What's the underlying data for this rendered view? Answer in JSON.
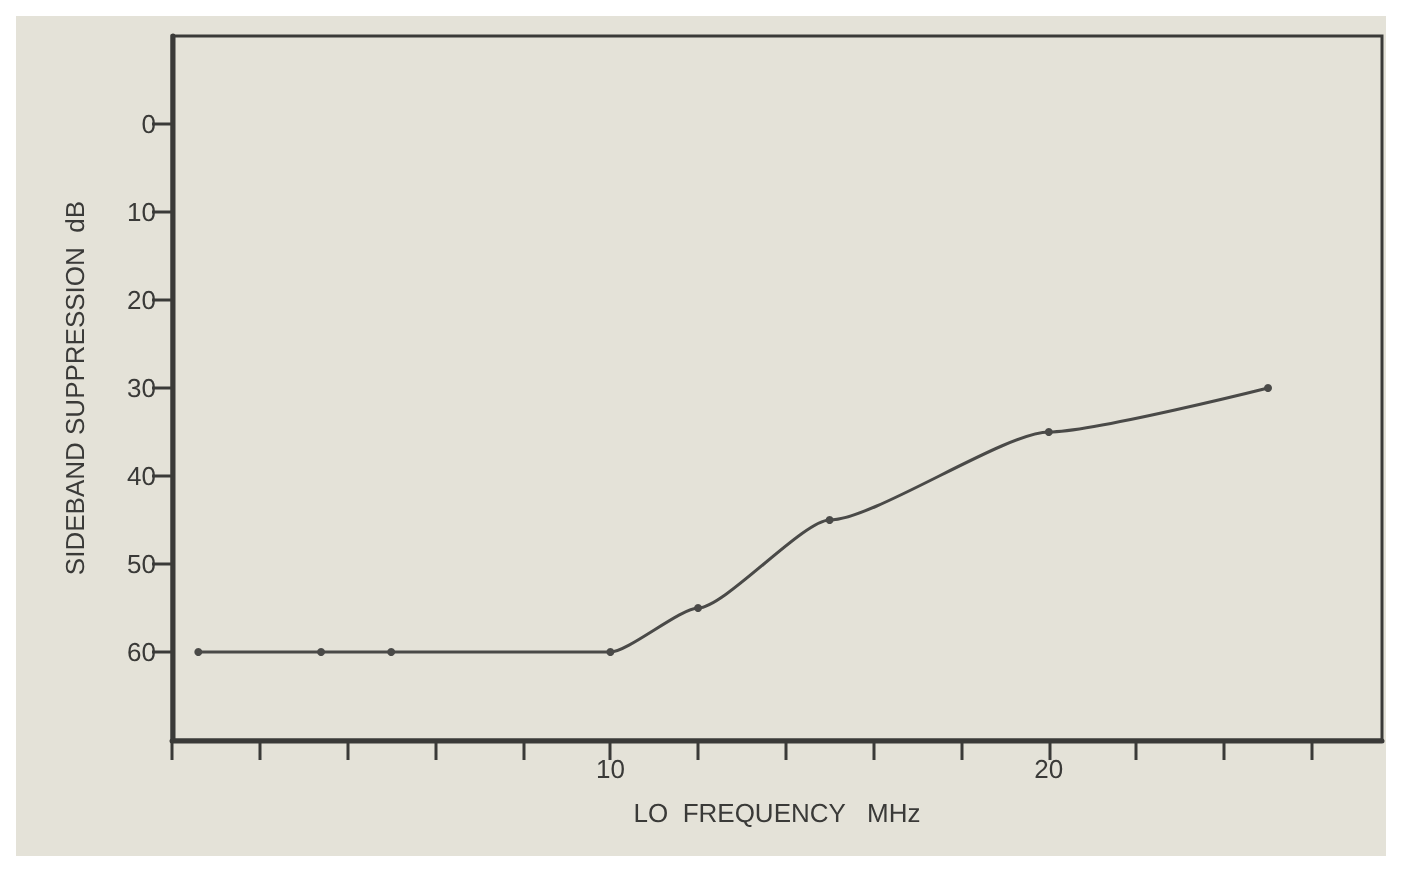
{
  "chart_data": {
    "type": "line",
    "xlabel": "LO  FREQUENCY   MHz",
    "ylabel": "SIDEBAND SUPPRESSION  dB",
    "x": [
      0.6,
      3.4,
      5,
      10,
      12,
      15,
      20,
      25
    ],
    "series": [
      {
        "color": "#4a4a48",
        "values": [
          60,
          60,
          60,
          60,
          55,
          45,
          35,
          30
        ]
      }
    ],
    "xlim": [
      0,
      27.6
    ],
    "xticks": [
      {
        "value": 0,
        "label": null
      },
      {
        "value": 2,
        "label": null
      },
      {
        "value": 4,
        "label": null
      },
      {
        "value": 6,
        "label": null
      },
      {
        "value": 8,
        "label": null
      },
      10,
      {
        "value": 12,
        "label": null
      },
      {
        "value": 14,
        "label": null
      },
      {
        "value": 16,
        "label": null
      },
      {
        "value": 18,
        "label": null
      },
      20,
      {
        "value": 22,
        "label": null
      },
      {
        "value": 24,
        "label": null
      },
      {
        "value": 26,
        "label": null
      }
    ],
    "ylim": [
      70,
      -10
    ],
    "yticks": [
      0,
      10,
      20,
      30,
      40,
      50,
      60
    ],
    "grid": false,
    "marker": "circle",
    "line_style": "solid"
  }
}
